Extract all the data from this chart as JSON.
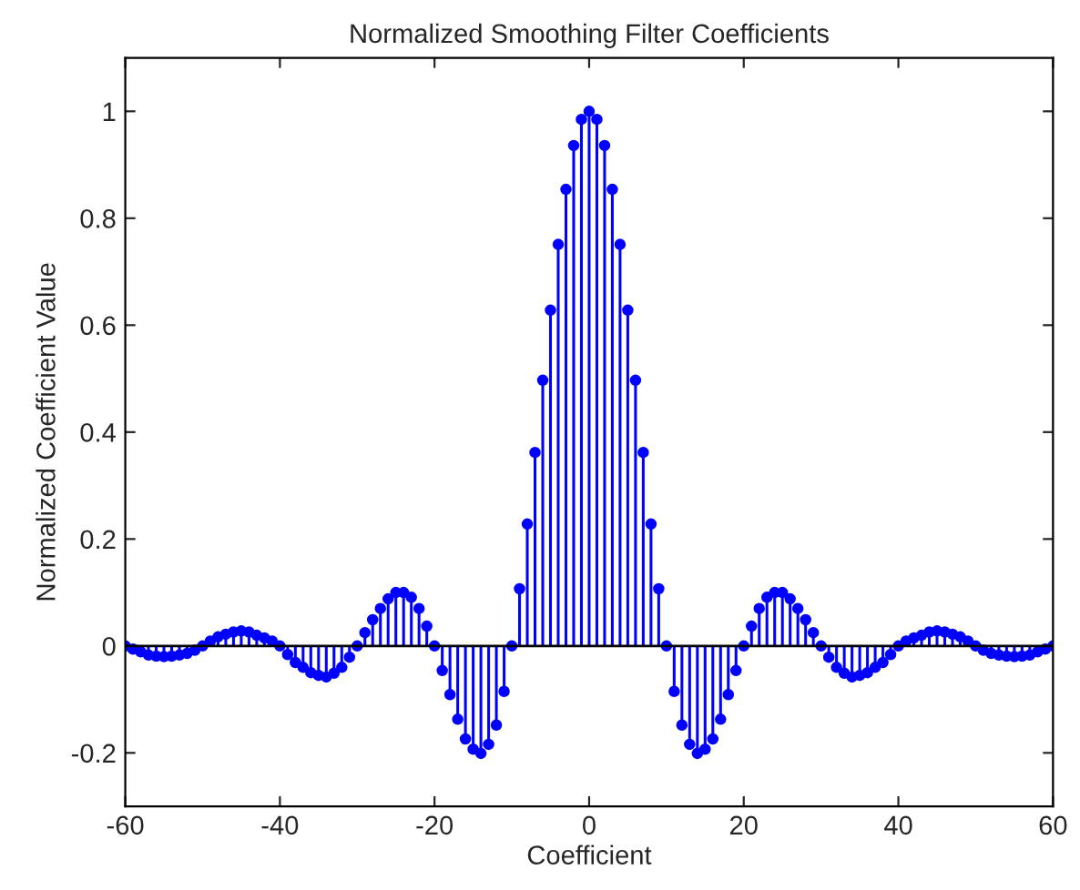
{
  "chart_data": {
    "type": "lollipop",
    "title": "Normalized Smoothing Filter Coefficients",
    "xlabel": "Coefficient",
    "ylabel": "Normalized Coefficient Value",
    "x": [
      -60,
      -59,
      -58,
      -57,
      -56,
      -55,
      -54,
      -53,
      -52,
      -51,
      -50,
      -49,
      -48,
      -47,
      -46,
      -45,
      -44,
      -43,
      -42,
      -41,
      -40,
      -39,
      -38,
      -37,
      -36,
      -35,
      -34,
      -33,
      -32,
      -31,
      -30,
      -29,
      -28,
      -27,
      -26,
      -25,
      -24,
      -23,
      -22,
      -21,
      -20,
      -19,
      -18,
      -17,
      -16,
      -15,
      -14,
      -13,
      -12,
      -11,
      -10,
      -9,
      -8,
      -7,
      -6,
      -5,
      -4,
      -3,
      -2,
      -1,
      0,
      1,
      2,
      3,
      4,
      5,
      6,
      7,
      8,
      9,
      10,
      11,
      12,
      13,
      14,
      15,
      16,
      17,
      18,
      19,
      20,
      21,
      22,
      23,
      24,
      25,
      26,
      27,
      28,
      29,
      30,
      31,
      32,
      33,
      34,
      35,
      36,
      37,
      38,
      39,
      40,
      41,
      42,
      43,
      44,
      45,
      46,
      47,
      48,
      49,
      50,
      51,
      52,
      53,
      54,
      55,
      56,
      57,
      58,
      59,
      60
    ],
    "series": [
      {
        "color": "#0000ff",
        "values": [
          0,
          -0.006,
          -0.011,
          -0.017,
          -0.019,
          -0.02,
          -0.019,
          -0.017,
          -0.014,
          -0.008,
          0,
          0.009,
          0.017,
          0.022,
          0.026,
          0.028,
          0.026,
          0.02,
          0.015,
          0.009,
          0,
          -0.016,
          -0.031,
          -0.04,
          -0.05,
          -0.055,
          -0.058,
          -0.051,
          -0.04,
          -0.021,
          0,
          0.025,
          0.049,
          0.07,
          0.088,
          0.1,
          0.1,
          0.091,
          0.07,
          0.037,
          0,
          -0.046,
          -0.091,
          -0.137,
          -0.174,
          -0.193,
          -0.201,
          -0.184,
          -0.148,
          -0.085,
          0,
          0.107,
          0.228,
          0.362,
          0.497,
          0.628,
          0.751,
          0.854,
          0.936,
          0.985,
          1,
          0.985,
          0.936,
          0.854,
          0.751,
          0.628,
          0.497,
          0.362,
          0.228,
          0.107,
          0,
          -0.085,
          -0.148,
          -0.184,
          -0.201,
          -0.193,
          -0.174,
          -0.137,
          -0.091,
          -0.046,
          0,
          0.037,
          0.07,
          0.091,
          0.1,
          0.1,
          0.088,
          0.07,
          0.049,
          0.025,
          0,
          -0.021,
          -0.04,
          -0.051,
          -0.058,
          -0.055,
          -0.05,
          -0.04,
          -0.031,
          -0.016,
          0,
          0.009,
          0.015,
          0.02,
          0.026,
          0.028,
          0.026,
          0.022,
          0.017,
          0.009,
          0,
          -0.008,
          -0.014,
          -0.017,
          -0.019,
          -0.02,
          -0.019,
          -0.017,
          -0.011,
          -0.006,
          0
        ]
      }
    ],
    "marker": "circle",
    "grid": false,
    "xlim": [
      -60,
      60
    ],
    "xticks": [
      -60,
      -40,
      -20,
      0,
      20,
      40,
      60
    ],
    "ylim": [
      -0.3,
      1.1
    ],
    "yticks": [
      -0.2,
      0,
      0.2,
      0.4,
      0.6,
      0.8,
      1
    ]
  }
}
